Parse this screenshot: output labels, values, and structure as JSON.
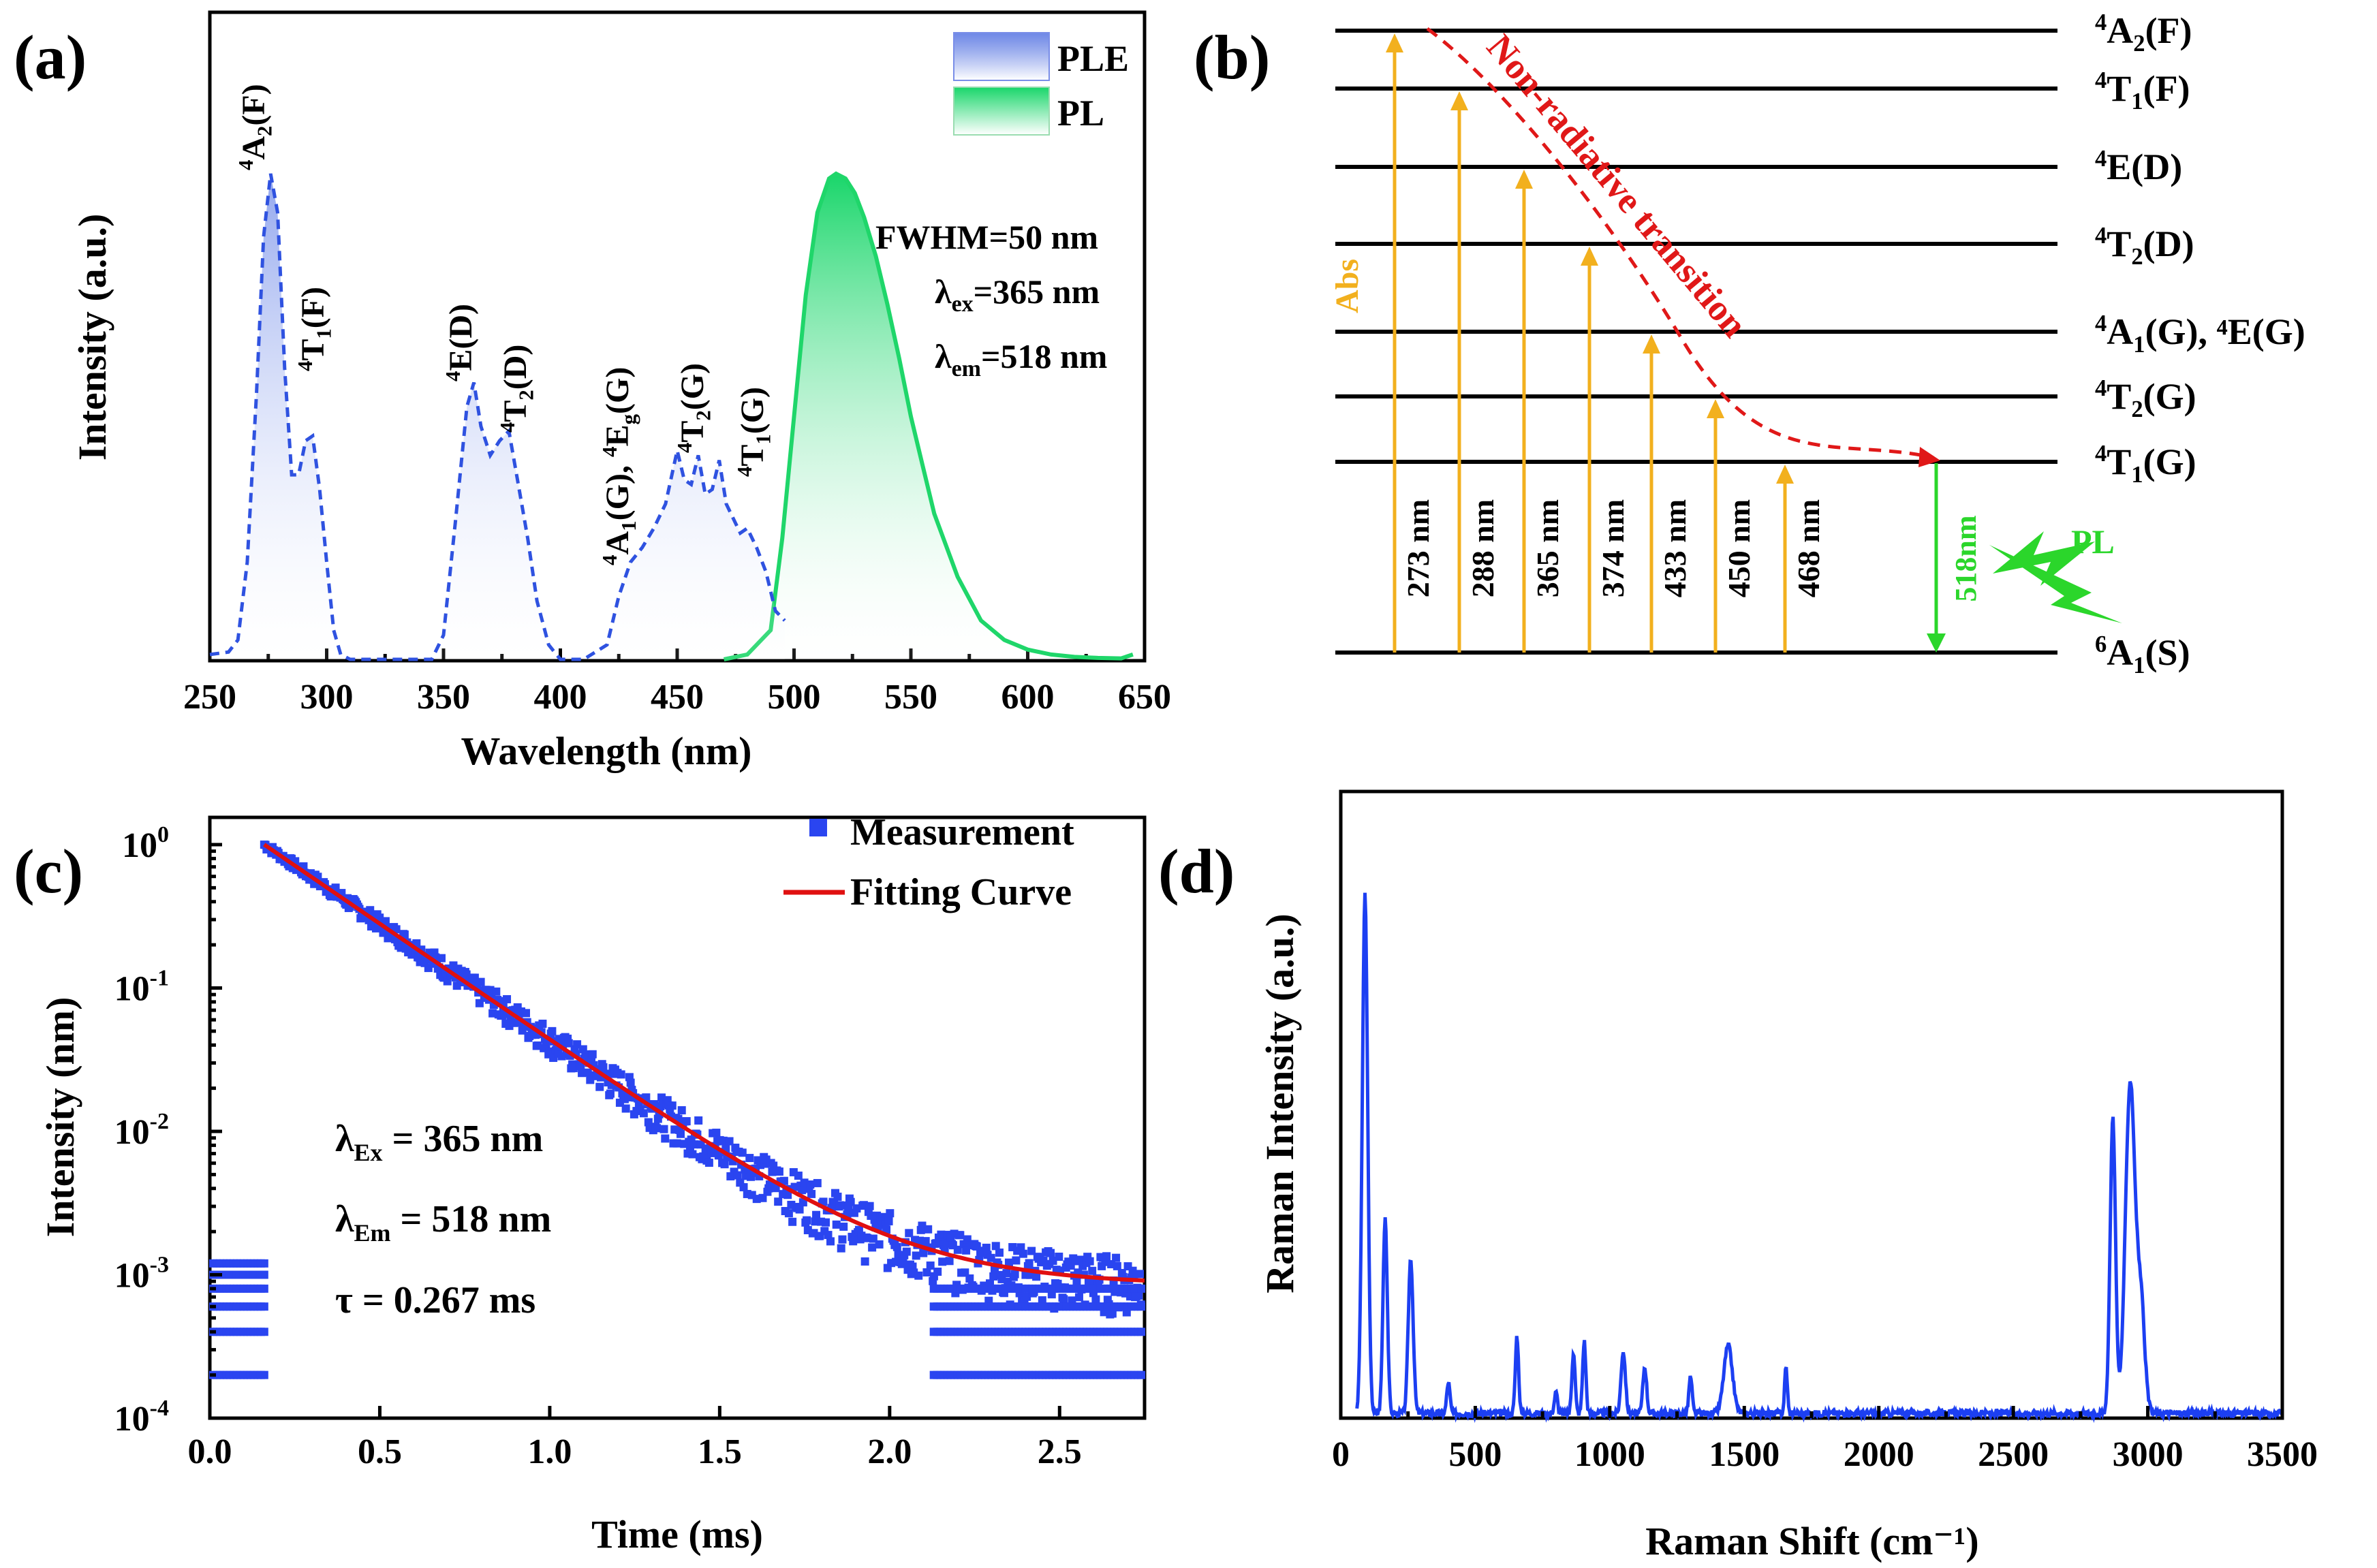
{
  "colors": {
    "ple": "#2f52e0",
    "pl": "#1fd66a",
    "abs": "#f2b01e",
    "nonrad": "#e01818",
    "pl_arrow": "#2bd62b",
    "measurement": "#2a45f0",
    "fit": "#e01010",
    "raman": "#1c3ff2"
  },
  "chart_data": [
    {
      "panel": "(a)",
      "type": "area",
      "xlabel": "Wavelength (nm)",
      "ylabel": "Intensity (a.u.)",
      "xlim": [
        250,
        650
      ],
      "ylim": [
        0,
        1.0
      ],
      "xticks": [
        "250",
        "300",
        "350",
        "400",
        "450",
        "500",
        "550",
        "600",
        "650"
      ],
      "legend": [
        "PLE",
        "PL"
      ],
      "legend_position": "top-right",
      "annotations": [
        "FWHM=50 nm",
        "λ",
        "ex",
        "=365 nm",
        "λ",
        "em",
        "=518 nm"
      ],
      "peak_labels": [
        {
          "sup": "4",
          "base": "A",
          "sub": "2",
          "tail": "(F)"
        },
        {
          "sup": "4",
          "base": "T",
          "sub": "1",
          "tail": "(F)"
        },
        {
          "sup": "4",
          "base": "E(D)",
          "sub": "",
          "tail": ""
        },
        {
          "sup": "4",
          "base": "T",
          "sub": "2",
          "tail": "(D)"
        },
        {
          "sup": "4",
          "base": "A",
          "sub": "1",
          "tail": "(G), "
        },
        {
          "sup": "4",
          "base": "E",
          "sub": "g",
          "tail": "(G)"
        },
        {
          "sup": "4",
          "base": "T",
          "sub": "2",
          "tail": "(G)"
        },
        {
          "sup": "4",
          "base": "T",
          "sub": "1",
          "tail": "(G)"
        }
      ],
      "series": [
        {
          "name": "PLE",
          "x": [
            250,
            258,
            262,
            266,
            270,
            273,
            276,
            279,
            282,
            285,
            288,
            291,
            294,
            297,
            300,
            303,
            306,
            310,
            330,
            345,
            350,
            355,
            360,
            363,
            366,
            370,
            374,
            378,
            382,
            386,
            390,
            395,
            400,
            410,
            420,
            425,
            430,
            435,
            440,
            445,
            450,
            453,
            456,
            459,
            462,
            465,
            468,
            471,
            474,
            477,
            480,
            484,
            488,
            492,
            496
          ],
          "y": [
            0.01,
            0.015,
            0.04,
            0.2,
            0.55,
            0.87,
            1.0,
            0.92,
            0.6,
            0.38,
            0.38,
            0.45,
            0.46,
            0.35,
            0.2,
            0.06,
            0.01,
            0.0,
            0.0,
            0.0,
            0.05,
            0.28,
            0.52,
            0.57,
            0.48,
            0.42,
            0.45,
            0.47,
            0.36,
            0.25,
            0.12,
            0.03,
            0.0,
            0.0,
            0.03,
            0.13,
            0.2,
            0.23,
            0.27,
            0.32,
            0.43,
            0.37,
            0.36,
            0.42,
            0.34,
            0.35,
            0.41,
            0.32,
            0.29,
            0.26,
            0.27,
            0.23,
            0.18,
            0.1,
            0.08
          ]
        },
        {
          "name": "PL",
          "x": [
            470,
            480,
            490,
            495,
            500,
            505,
            510,
            515,
            518,
            522,
            526,
            530,
            535,
            540,
            545,
            550,
            555,
            560,
            570,
            580,
            590,
            600,
            610,
            620,
            630,
            640,
            645
          ],
          "y": [
            0.0,
            0.01,
            0.06,
            0.25,
            0.5,
            0.75,
            0.92,
            0.99,
            1.0,
            0.99,
            0.96,
            0.91,
            0.83,
            0.73,
            0.62,
            0.5,
            0.4,
            0.3,
            0.17,
            0.08,
            0.04,
            0.02,
            0.01,
            0.005,
            0.003,
            0.002,
            0.01
          ]
        }
      ]
    },
    {
      "panel": "(b)",
      "type": "diagram",
      "levels": [
        {
          "sup": "4",
          "base": "A",
          "sub": "2",
          "tail": "(F)"
        },
        {
          "sup": "4",
          "base": "T",
          "sub": "1",
          "tail": "(F)"
        },
        {
          "sup": "4",
          "base": "E(D)",
          "sub": "",
          "tail": ""
        },
        {
          "sup": "4",
          "base": "T",
          "sub": "2",
          "tail": "(D)"
        },
        {
          "sup": "4",
          "base": "A",
          "sub": "1",
          "tail": "(G), ⁴E(G)"
        },
        {
          "sup": "4",
          "base": "T",
          "sub": "2",
          "tail": "(G)"
        },
        {
          "sup": "4",
          "base": "T",
          "sub": "1",
          "tail": "(G)"
        },
        {
          "sup": "6",
          "base": "A",
          "sub": "1",
          "tail": "(S)"
        }
      ],
      "absorption_nm": [
        "273 nm",
        "288 nm",
        "365 nm",
        "374 nm",
        "433 nm",
        "450 nm",
        "468 nm"
      ],
      "abs_label": "Abs",
      "nonrad_label": "Non-radiative transition",
      "emission_label": "518nm",
      "pl_label": "PL"
    },
    {
      "panel": "(c)",
      "type": "scatter",
      "xlabel": "Time (ms)",
      "ylabel": "Intensity (nm)",
      "xlim": [
        0,
        2.75
      ],
      "ylim_log10": [
        -4,
        0.2
      ],
      "xticks": [
        "0.0",
        "0.5",
        "1.0",
        "1.5",
        "2.0",
        "2.5"
      ],
      "yticks": [
        {
          "base": "10",
          "exp": "0"
        },
        {
          "base": "10",
          "exp": "-1"
        },
        {
          "base": "10",
          "exp": "-2"
        },
        {
          "base": "10",
          "exp": "-3"
        },
        {
          "base": "10",
          "exp": "-4"
        }
      ],
      "legend": [
        "Measurement",
        "Fitting Curve"
      ],
      "legend_position": "top-right",
      "annotations": [
        "λ",
        "Ex",
        " = 365 nm",
        "λ",
        "Em",
        " = 518 nm",
        "τ = 0.267 ms"
      ],
      "fit": {
        "model": "single exponential",
        "tau_ms": 0.267,
        "t0_ms": 0.16,
        "A": 1.0,
        "background": 0.00085
      },
      "noise_floor_levels": [
        0.0002,
        0.0004,
        0.0006,
        0.0008,
        0.001,
        0.0012
      ]
    },
    {
      "panel": "(d)",
      "type": "line",
      "xlabel": "Raman Shift (cm⁻¹)",
      "ylabel": "Raman Intensity (a.u.)",
      "xlim": [
        0,
        3500
      ],
      "ylim": [
        0,
        1.0
      ],
      "xticks": [
        "0",
        "500",
        "1000",
        "1500",
        "2000",
        "2500",
        "3000",
        "3500"
      ],
      "baseline": 0.02,
      "peaks": [
        {
          "x": 90,
          "h": 1.0,
          "w": 10
        },
        {
          "x": 165,
          "h": 0.38,
          "w": 8
        },
        {
          "x": 260,
          "h": 0.3,
          "w": 9
        },
        {
          "x": 400,
          "h": 0.06,
          "w": 6
        },
        {
          "x": 655,
          "h": 0.15,
          "w": 6
        },
        {
          "x": 800,
          "h": 0.04,
          "w": 6
        },
        {
          "x": 865,
          "h": 0.12,
          "w": 6
        },
        {
          "x": 905,
          "h": 0.14,
          "w": 6
        },
        {
          "x": 1050,
          "h": 0.12,
          "w": 8
        },
        {
          "x": 1130,
          "h": 0.09,
          "w": 7
        },
        {
          "x": 1300,
          "h": 0.07,
          "w": 6
        },
        {
          "x": 1440,
          "h": 0.13,
          "w": 16
        },
        {
          "x": 1655,
          "h": 0.09,
          "w": 5
        },
        {
          "x": 2870,
          "h": 0.57,
          "w": 10
        },
        {
          "x": 2935,
          "h": 0.64,
          "w": 18
        },
        {
          "x": 2975,
          "h": 0.2,
          "w": 14
        }
      ]
    }
  ],
  "panels": {
    "a_label": "(a)",
    "b_label": "(b)",
    "c_label": "(c)",
    "d_label": "(d)"
  }
}
